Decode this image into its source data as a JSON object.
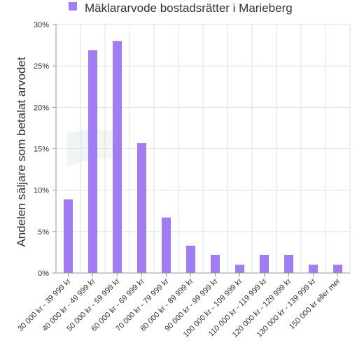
{
  "chart_data": {
    "type": "bar",
    "title": "",
    "legend": {
      "entries": [
        "Mäklararvode bostadsrätter i Marieberg"
      ],
      "placement": "top-center"
    },
    "ylabel": "Andelen säljare som betalat arvodet",
    "xlabel": "",
    "ylim": [
      0,
      30
    ],
    "yticks": [
      "0%",
      "5%",
      "10%",
      "15%",
      "20%",
      "25%",
      "30%"
    ],
    "grid": true,
    "color": "#a07cf5",
    "categories": [
      "30 000 kr - 39 999 kr",
      "40 000 kr - 49 999 kr",
      "50 000 kr - 59 999 kr",
      "60 000 kr - 69 999 kr",
      "70 000 kr - 79 999 kr",
      "80 000 kr - 89 999 kr",
      "90 000 kr - 99 999 kr",
      "100 000 kr - 109 999 kr",
      "110 000 kr - 119 999 kr",
      "120 000 kr - 129 999 kr",
      "130 000 kr - 139 999 kr",
      "150 000 kr eller mer"
    ],
    "series": [
      {
        "name": "Mäklararvode bostadsrätter i Marieberg",
        "values": [
          8.9,
          26.9,
          28.0,
          15.7,
          6.7,
          3.3,
          2.2,
          1.0,
          2.2,
          2.2,
          1.0,
          1.0
        ]
      }
    ]
  }
}
